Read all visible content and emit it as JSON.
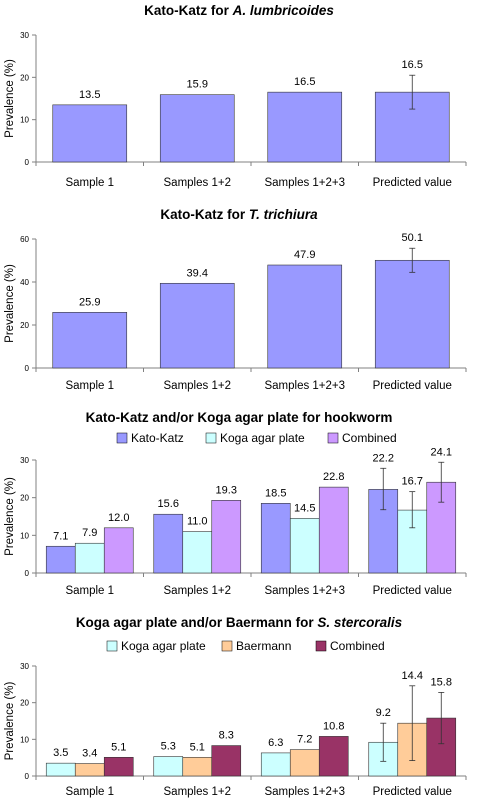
{
  "chart_data": [
    {
      "type": "bar",
      "title": "Kato-Katz for ",
      "title_italic": "A. lumbricoides",
      "ylabel": "Prevalence (%)",
      "ylim": [
        0,
        30
      ],
      "yticks": [
        0,
        10,
        20,
        30
      ],
      "categories": [
        "Sample 1",
        "Samples 1+2",
        "Samples 1+2+3",
        "Predicted value"
      ],
      "series": [
        {
          "values": [
            13.5,
            15.9,
            16.5,
            16.5
          ],
          "labels": [
            "13.5",
            "15.9",
            "16.5",
            "16.5"
          ],
          "color": "#9999ff",
          "errors": [
            null,
            null,
            null,
            [
              12.5,
              20.5
            ]
          ]
        }
      ]
    },
    {
      "type": "bar",
      "title": "Kato-Katz for ",
      "title_italic": "T. trichiura",
      "ylabel": "Prevalence (%)",
      "ylim": [
        0,
        60
      ],
      "yticks": [
        0,
        20,
        40,
        60
      ],
      "categories": [
        "Sample 1",
        "Samples 1+2",
        "Samples 1+2+3",
        "Predicted value"
      ],
      "series": [
        {
          "values": [
            25.9,
            39.4,
            47.9,
            50.1
          ],
          "labels": [
            "25.9",
            "39.4",
            "47.9",
            "50.1"
          ],
          "color": "#9999ff",
          "errors": [
            null,
            null,
            null,
            [
              44.5,
              55.7
            ]
          ]
        }
      ]
    },
    {
      "type": "bar",
      "title": "Kato-Katz and/or Koga agar plate for hookworm",
      "title_italic": "",
      "ylabel": "Prevalence (%)",
      "ylim": [
        0,
        30
      ],
      "yticks": [
        0,
        10,
        20,
        30
      ],
      "categories": [
        "Sample 1",
        "Samples 1+2",
        "Samples 1+2+3",
        "Predicted value"
      ],
      "legend_position": "top",
      "series": [
        {
          "name": "Kato-Katz",
          "values": [
            7.1,
            15.6,
            18.5,
            22.2
          ],
          "labels": [
            "7.1",
            "15.6",
            "18.5",
            "22.2"
          ],
          "color": "#9999ff",
          "errors": [
            null,
            null,
            null,
            [
              16.8,
              27.8
            ]
          ]
        },
        {
          "name": "Koga agar plate",
          "values": [
            7.9,
            11.0,
            14.5,
            16.7
          ],
          "labels": [
            "7.9",
            "11.0",
            "14.5",
            "16.7"
          ],
          "color": "#ccffff",
          "errors": [
            null,
            null,
            null,
            [
              12.0,
              21.6
            ]
          ]
        },
        {
          "name": "Combined",
          "values": [
            12.0,
            19.3,
            22.8,
            24.1
          ],
          "labels": [
            "12.0",
            "19.3",
            "22.8",
            "24.1"
          ],
          "color": "#cc99ff",
          "errors": [
            null,
            null,
            null,
            [
              18.8,
              29.4
            ]
          ]
        }
      ]
    },
    {
      "type": "bar",
      "title": "Koga agar plate and/or Baermann for ",
      "title_italic": "S. stercoralis",
      "ylabel": "Prevalence (%)",
      "ylim": [
        0,
        30
      ],
      "yticks": [
        0,
        10,
        20,
        30
      ],
      "categories": [
        "Sample 1",
        "Samples 1+2",
        "Samples 1+2+3",
        "Predicted value"
      ],
      "legend_position": "top",
      "series": [
        {
          "name": "Koga agar plate",
          "values": [
            3.5,
            5.3,
            6.3,
            9.2
          ],
          "labels": [
            "3.5",
            "5.3",
            "6.3",
            "9.2"
          ],
          "color": "#ccffff",
          "errors": [
            null,
            null,
            null,
            [
              4.0,
              14.4
            ]
          ]
        },
        {
          "name": "Baermann",
          "values": [
            3.4,
            5.1,
            7.2,
            14.4
          ],
          "labels": [
            "3.4",
            "5.1",
            "7.2",
            "14.4"
          ],
          "color": "#ffcc99",
          "errors": [
            null,
            null,
            null,
            [
              4.2,
              24.6
            ]
          ]
        },
        {
          "name": "Combined",
          "values": [
            5.1,
            8.3,
            10.8,
            15.8
          ],
          "labels": [
            "5.1",
            "8.3",
            "10.8",
            "15.8"
          ],
          "color": "#993366",
          "errors": [
            null,
            null,
            null,
            [
              8.8,
              22.8
            ]
          ]
        }
      ]
    }
  ]
}
